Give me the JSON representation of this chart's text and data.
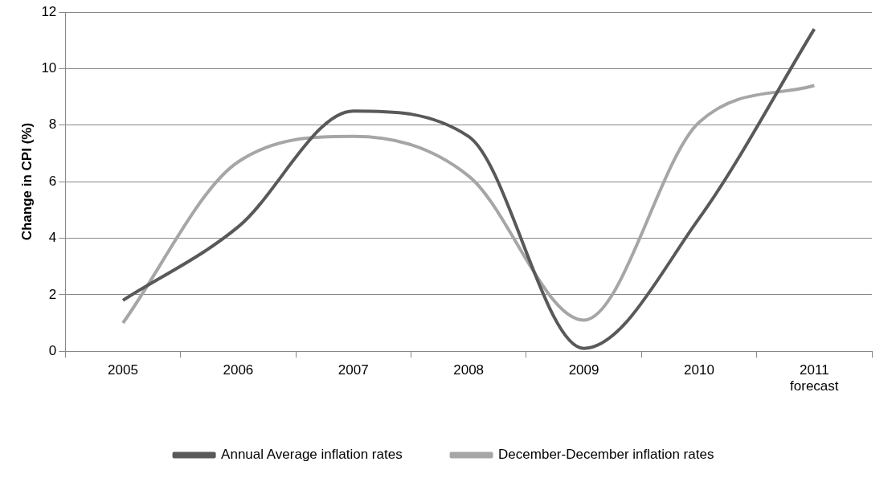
{
  "chart_data": {
    "type": "line",
    "ylabel": "Change in CPI (%)",
    "categories": [
      "2005",
      "2006",
      "2007",
      "2008",
      "2009",
      "2010",
      "2011\nforecast"
    ],
    "series": [
      {
        "name": "Annual Average inflation rates",
        "color": "#595959",
        "values": [
          1.8,
          4.4,
          8.5,
          7.6,
          0.1,
          4.7,
          11.4
        ]
      },
      {
        "name": "December-December inflation rates",
        "color": "#a6a6a6",
        "values": [
          1.0,
          6.7,
          7.6,
          6.2,
          1.1,
          8.1,
          9.4
        ]
      }
    ],
    "ylim": [
      0,
      12
    ],
    "yticks": [
      0,
      2,
      4,
      6,
      8,
      10,
      12
    ],
    "grid": "y",
    "legend": "bottom",
    "marker": "none",
    "line_style": "solid"
  }
}
